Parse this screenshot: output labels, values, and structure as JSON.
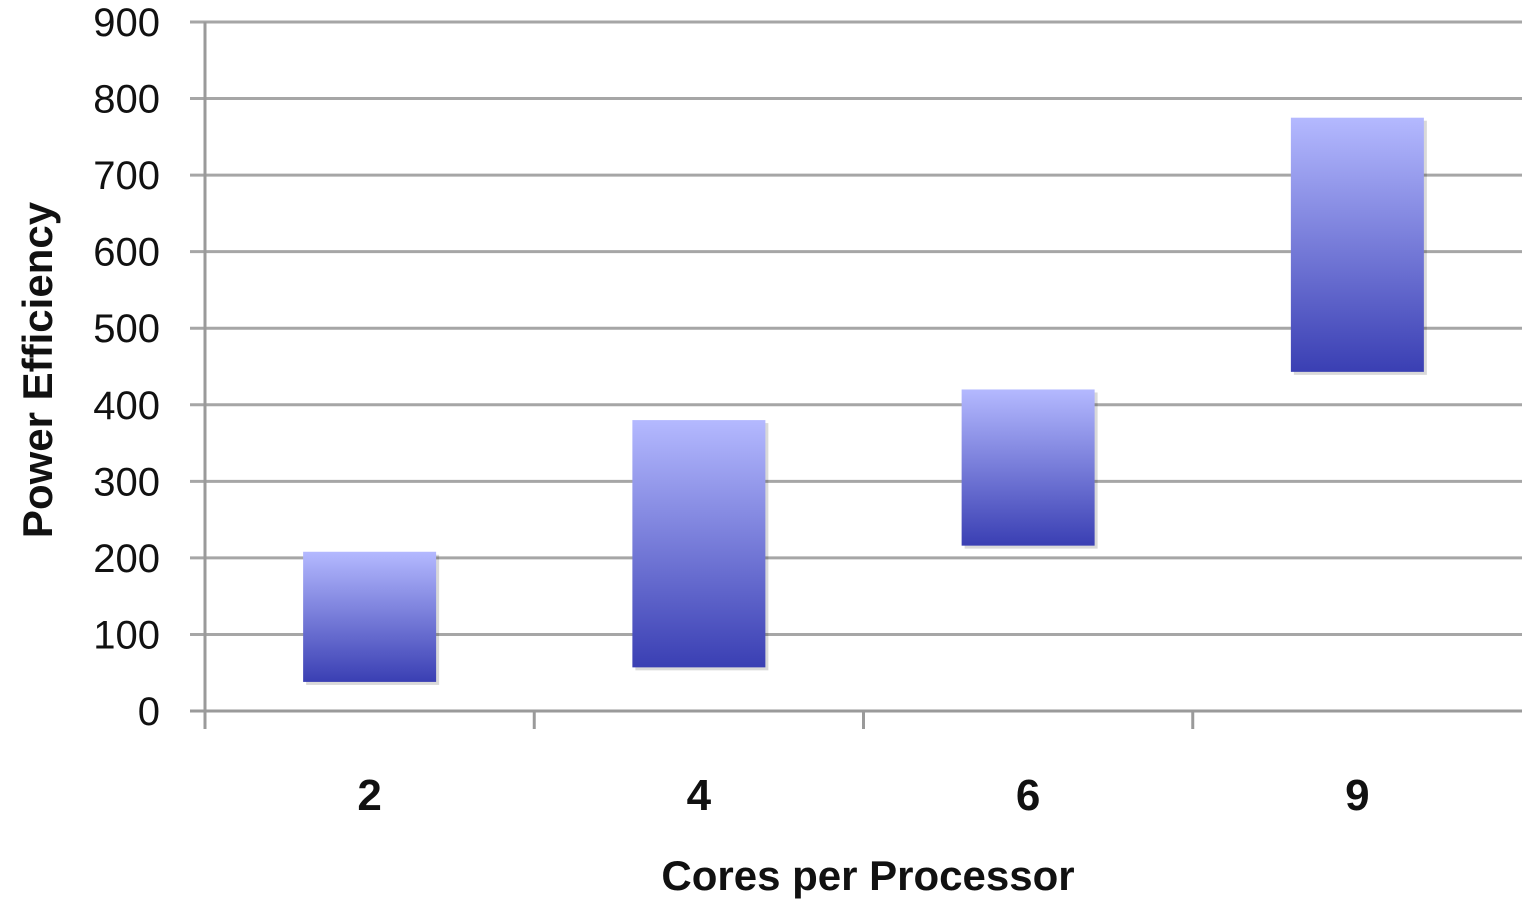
{
  "chart_data": {
    "type": "bar",
    "subtype": "floating-range",
    "categories": [
      "2",
      "4",
      "6",
      "9"
    ],
    "series": [
      {
        "low": [
          38,
          57,
          216,
          443
        ],
        "high": [
          208,
          380,
          420,
          775
        ]
      }
    ],
    "xlabel": "Cores per Processor",
    "ylabel": "Power Efficiency",
    "ylim": [
      0,
      900
    ],
    "yticks": [
      "0",
      "100",
      "200",
      "300",
      "400",
      "500",
      "600",
      "700",
      "800",
      "900"
    ],
    "grid": true,
    "legend": "none",
    "colors": {
      "bar_top": "#b4b9ff",
      "bar_bottom": "#3a3fb3",
      "grid": "#a6a6a6",
      "axis": "#9a9a9a"
    }
  }
}
